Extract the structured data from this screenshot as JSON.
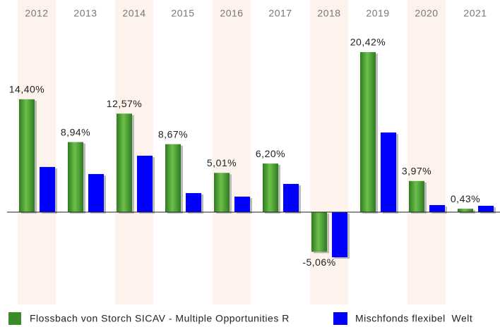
{
  "chart_data": {
    "type": "bar",
    "categories": [
      "2012",
      "2013",
      "2014",
      "2015",
      "2016",
      "2017",
      "2018",
      "2019",
      "2020",
      "2021"
    ],
    "series": [
      {
        "name": "Flossbach von Storch SICAV - Multiple Opportunities R",
        "color": "#3a8a2a",
        "values": [
          14.4,
          8.94,
          12.57,
          8.67,
          5.01,
          6.2,
          -5.06,
          20.42,
          3.97,
          0.43
        ],
        "value_labels": [
          "14,40%",
          "8,94%",
          "12,57%",
          "8,67%",
          "5,01%",
          "6,20%",
          "-5,06%",
          "20,42%",
          "3,97%",
          "0,43%"
        ]
      },
      {
        "name": "Mischfonds flexibel  Welt",
        "color": "#0000ff",
        "values": [
          5.76,
          4.86,
          7.2,
          2.43,
          1.98,
          3.6,
          -5.76,
          10.16,
          0.9,
          0.81
        ]
      }
    ]
  }
}
